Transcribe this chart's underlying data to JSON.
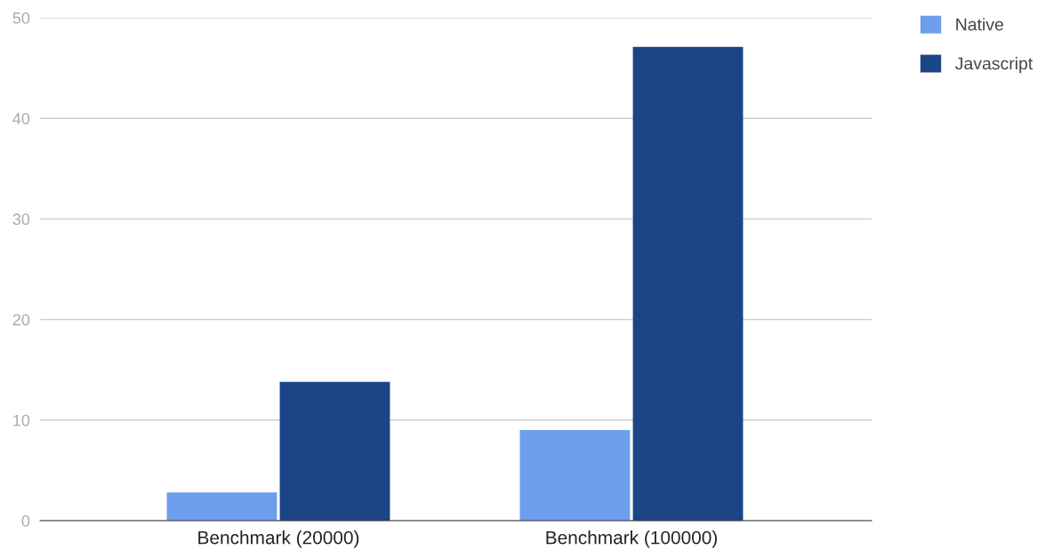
{
  "chart_data": {
    "type": "bar",
    "categories": [
      "Benchmark (20000)",
      "Benchmark (100000)"
    ],
    "series": [
      {
        "name": "Native",
        "color": "#6d9eeb",
        "values": [
          2.8,
          9.0
        ]
      },
      {
        "name": "Javascript",
        "color": "#1c4587",
        "values": [
          13.8,
          47.1
        ]
      }
    ],
    "ylim": [
      0,
      50
    ],
    "yticks": [
      0,
      10,
      20,
      30,
      40,
      50
    ],
    "grid": "y",
    "legend": "top right"
  }
}
